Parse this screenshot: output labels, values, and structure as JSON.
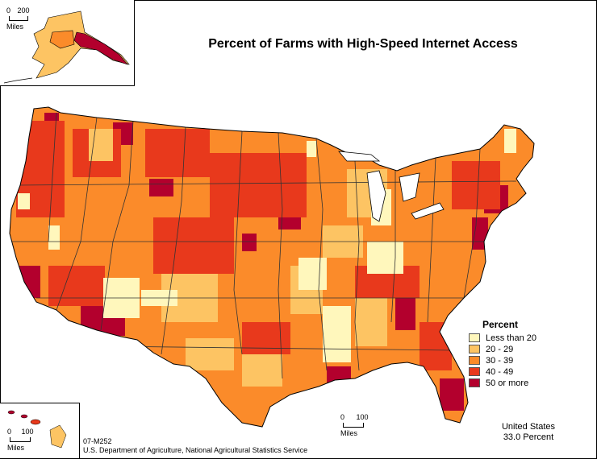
{
  "title": "Percent of Farms with High-Speed Internet Access",
  "legend": {
    "title": "Percent",
    "classes": [
      {
        "label": "Less than 20",
        "color": "#fff7bc"
      },
      {
        "label": "20 - 29",
        "color": "#fdc463"
      },
      {
        "label": "30 - 39",
        "color": "#fb8b2a"
      },
      {
        "label": "40 - 49",
        "color": "#e8391c"
      },
      {
        "label": "50 or more",
        "color": "#b3002d"
      }
    ]
  },
  "us_total": {
    "line1": "United States",
    "line2": "33.0 Percent"
  },
  "scales": {
    "alaska": {
      "min": "0",
      "max": "200",
      "unit": "Miles"
    },
    "hawaii": {
      "min": "0",
      "max": "100",
      "unit": "Miles"
    },
    "conus": {
      "min": "0",
      "max": "100",
      "unit": "Miles"
    }
  },
  "footer": {
    "map_id": "07-M252",
    "source": "U.S. Department of Agriculture, National Agricultural Statistics Service"
  },
  "colors": {
    "border": "#000000",
    "state_line": "#333333"
  }
}
